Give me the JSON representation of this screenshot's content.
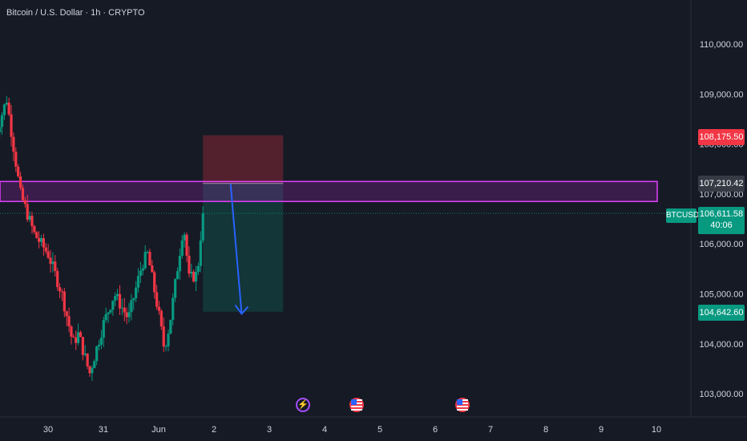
{
  "header": {
    "title": "Bitcoin / U.S. Dollar · 1h · CRYPTO"
  },
  "colors": {
    "background": "#161a25",
    "up": "#089981",
    "down": "#f23645",
    "zone": "#e040fb",
    "arrow": "#2962ff",
    "axis_text": "#d1d4dc"
  },
  "price_axis": {
    "ticks": [
      {
        "value": 110000,
        "label": "110,000.00"
      },
      {
        "value": 109000,
        "label": "109,000.00"
      },
      {
        "value": 108000,
        "label": "108,000.00"
      },
      {
        "value": 107000,
        "label": "107,000.00"
      },
      {
        "value": 106000,
        "label": "106,000.00"
      },
      {
        "value": 105000,
        "label": "105,000.00"
      },
      {
        "value": 104000,
        "label": "104,000.00"
      },
      {
        "value": 103000,
        "label": "103,000.00"
      }
    ]
  },
  "time_axis": {
    "ticks": [
      {
        "label": "30"
      },
      {
        "label": "31"
      },
      {
        "label": "Jun"
      },
      {
        "label": "2"
      },
      {
        "label": "3"
      },
      {
        "label": "4"
      },
      {
        "label": "5"
      },
      {
        "label": "6"
      },
      {
        "label": "7"
      },
      {
        "label": "8"
      },
      {
        "label": "9"
      },
      {
        "label": "10"
      }
    ]
  },
  "labels": {
    "stop_loss": "108,175.50",
    "entry": "107,210.42",
    "ticker": "BTCUSD",
    "current_price": "106,611.58",
    "countdown": "40:06",
    "take_profit": "104,642.60"
  },
  "chart_data": {
    "type": "candlestick",
    "title": "Bitcoin / U.S. Dollar · 1h · CRYPTO",
    "ylim": [
      102700,
      110700
    ],
    "x_range_days": [
      "May 29",
      "Jun 10"
    ],
    "price_path_anchors": [
      {
        "t": 0.0,
        "price": 108000
      },
      {
        "t": 0.25,
        "price": 108900
      },
      {
        "t": 0.5,
        "price": 107000
      },
      {
        "t": 0.75,
        "price": 106200
      },
      {
        "t": 1.0,
        "price": 105800
      },
      {
        "t": 1.25,
        "price": 105000
      },
      {
        "t": 1.45,
        "price": 104000
      },
      {
        "t": 1.55,
        "price": 104200
      },
      {
        "t": 1.75,
        "price": 103400
      },
      {
        "t": 2.0,
        "price": 104400
      },
      {
        "t": 2.2,
        "price": 105000
      },
      {
        "t": 2.45,
        "price": 104500
      },
      {
        "t": 2.7,
        "price": 105600
      },
      {
        "t": 2.8,
        "price": 105800
      },
      {
        "t": 3.0,
        "price": 104600
      },
      {
        "t": 3.1,
        "price": 103900
      },
      {
        "t": 3.2,
        "price": 104400
      },
      {
        "t": 3.35,
        "price": 105600
      },
      {
        "t": 3.45,
        "price": 106400
      },
      {
        "t": 3.55,
        "price": 105300
      },
      {
        "t": 3.7,
        "price": 105400
      },
      {
        "t": 3.8,
        "price": 106700
      }
    ],
    "resistance_zone": {
      "low": 106850,
      "high": 107250
    },
    "short_position": {
      "entry": 107210.42,
      "stop_loss": 108175.5,
      "take_profit": 104642.6,
      "start_day": 3.8,
      "end_day": 5.25
    },
    "projected_move": {
      "from_day": 4.3,
      "from_price": 107200,
      "to_day": 4.5,
      "to_price": 104600
    },
    "current_price": 106611.58,
    "events": [
      {
        "day": 3.55,
        "icon": "dividend-lightning-icon"
      },
      {
        "day": 4.55,
        "icon": "us-flag-icon"
      },
      {
        "day": 6.55,
        "icon": "us-flag-icon"
      }
    ]
  }
}
